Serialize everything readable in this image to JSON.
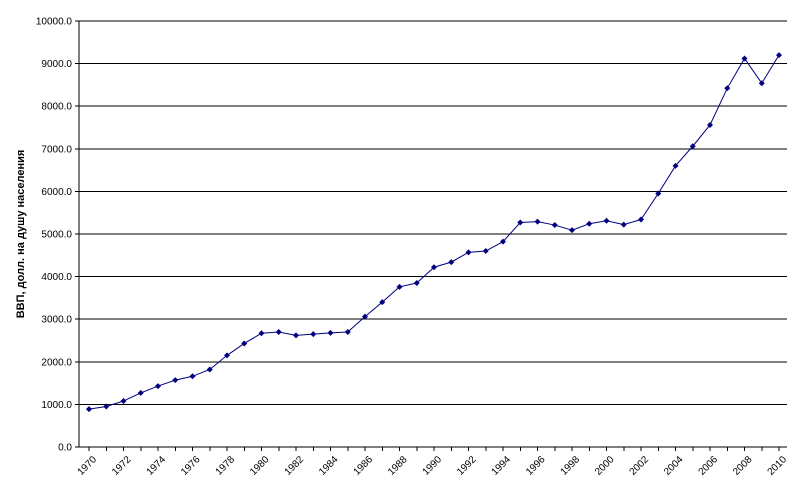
{
  "chart_data": {
    "type": "line",
    "title": "",
    "xlabel": "",
    "ylabel": "ВВП, долл. на душу населения",
    "x": [
      1970,
      1971,
      1972,
      1973,
      1974,
      1975,
      1976,
      1977,
      1978,
      1979,
      1980,
      1981,
      1982,
      1983,
      1984,
      1985,
      1986,
      1987,
      1988,
      1989,
      1990,
      1991,
      1992,
      1993,
      1994,
      1995,
      1996,
      1997,
      1998,
      1999,
      2000,
      2001,
      2002,
      2003,
      2004,
      2005,
      2006,
      2007,
      2008,
      2009,
      2010
    ],
    "series": [
      {
        "name": "",
        "color": "#00007f",
        "values": [
          890,
          950,
          1080,
          1270,
          1430,
          1570,
          1660,
          1820,
          2150,
          2430,
          2670,
          2700,
          2620,
          2650,
          2680,
          2700,
          3060,
          3400,
          3760,
          3850,
          4220,
          4340,
          4570,
          4600,
          4820,
          5270,
          5290,
          5210,
          5090,
          5240,
          5310,
          5220,
          5340,
          5950,
          6600,
          7060,
          7560,
          8420,
          9120,
          8540,
          9200
        ]
      }
    ],
    "ylim": [
      0,
      10000
    ],
    "yticks": [
      "0.0",
      "1000.0",
      "2000.0",
      "3000.0",
      "4000.0",
      "5000.0",
      "6000.0",
      "7000.0",
      "8000.0",
      "9000.0",
      "10000.0"
    ],
    "xticks": [
      "1970",
      "1972",
      "1974",
      "1976",
      "1978",
      "1980",
      "1982",
      "1984",
      "1986",
      "1988",
      "1990",
      "1992",
      "1994",
      "1996",
      "1998",
      "2000",
      "2002",
      "2004",
      "2006",
      "2008",
      "2010"
    ],
    "grid": true,
    "legend": "none"
  }
}
